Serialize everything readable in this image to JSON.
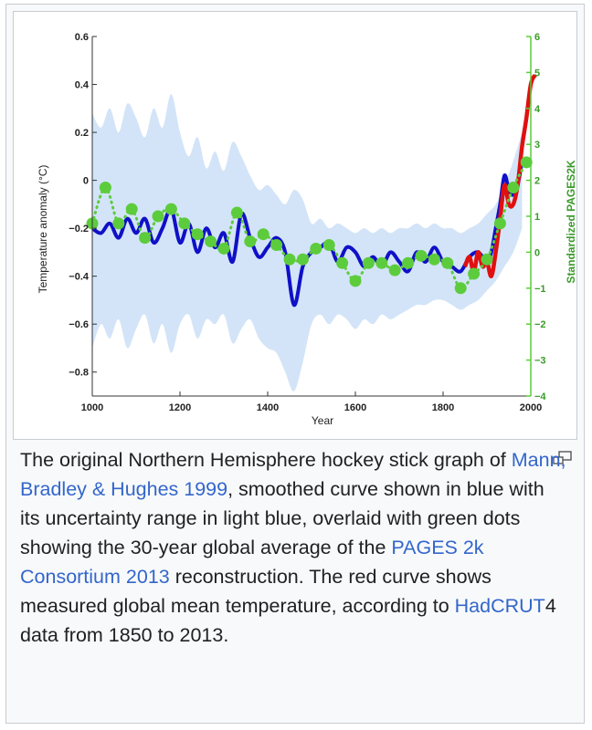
{
  "caption": {
    "t1": "The original Northern Hemisphere hockey stick graph of ",
    "link1": "Mann, Bradley & Hughes 1999",
    "t2": ", smoothed curve shown in blue with its uncertainty range in light blue, overlaid with green dots showing the 30-year global average of the ",
    "link2": "PAGES 2k Consortium 2013",
    "t3": " reconstruction. The red curve shows measured global mean temperature, according to ",
    "link3": "HadCRUT",
    "t4": "4 data from 1850 to 2013."
  },
  "icons": {
    "magnify": "magnify-icon"
  },
  "colors": {
    "mann_line": "#1010c8",
    "uncertainty": "#d3e4f8",
    "pages2k": "#5ccc3c",
    "hadcrut": "#e01010",
    "link": "#3366cc"
  },
  "chart_data": {
    "type": "line",
    "title": "",
    "xlabel": "Year",
    "ylabel": "Temperature anomaly (°C)",
    "y2label": "Standardized PAGES2K",
    "xlim": [
      1000,
      2000
    ],
    "ylim": [
      -0.9,
      0.6
    ],
    "y2lim": [
      -4,
      6
    ],
    "xticks": [
      1000,
      1200,
      1400,
      1600,
      1800,
      2000
    ],
    "yticks": [
      0.6,
      0.4,
      0.2,
      0,
      -0.2,
      -0.4,
      -0.6,
      -0.8
    ],
    "yticklabels": [
      "0.6",
      "0.4",
      "0.2",
      "0",
      "−0.2",
      "−0.4",
      "−0.6",
      "−0.8"
    ],
    "y2ticks": [
      6,
      5,
      4,
      3,
      2,
      1,
      0,
      -1,
      -2,
      -3,
      -4
    ],
    "y2ticklabels": [
      "6",
      "5",
      "4",
      "3",
      "2",
      "1",
      "0",
      "−1",
      "−2",
      "−3",
      "−4"
    ],
    "grid": false,
    "series": [
      {
        "kind": "band",
        "axis": "left",
        "x": [
          1000,
          1020,
          1040,
          1060,
          1080,
          1100,
          1120,
          1140,
          1160,
          1180,
          1200,
          1220,
          1240,
          1260,
          1280,
          1300,
          1320,
          1340,
          1360,
          1380,
          1400,
          1420,
          1440,
          1460,
          1480,
          1500,
          1520,
          1540,
          1560,
          1580,
          1600,
          1620,
          1640,
          1660,
          1680,
          1700,
          1720,
          1740,
          1760,
          1780,
          1800,
          1820,
          1840,
          1860,
          1880,
          1900,
          1920,
          1940,
          1960,
          1980
        ],
        "upper": [
          0.28,
          0.22,
          0.3,
          0.2,
          0.32,
          0.26,
          0.18,
          0.3,
          0.22,
          0.36,
          0.2,
          0.1,
          0.18,
          0.05,
          0.12,
          0.04,
          0.16,
          0.1,
          0.02,
          -0.04,
          -0.02,
          -0.06,
          -0.1,
          -0.04,
          -0.08,
          -0.18,
          -0.16,
          -0.2,
          -0.18,
          -0.2,
          -0.22,
          -0.2,
          -0.22,
          -0.2,
          -0.22,
          -0.2,
          -0.2,
          -0.18,
          -0.2,
          -0.18,
          -0.2,
          -0.2,
          -0.22,
          -0.2,
          -0.18,
          -0.14,
          -0.1,
          -0.02,
          0.08,
          0.2
        ],
        "lower": [
          -0.7,
          -0.6,
          -0.66,
          -0.58,
          -0.7,
          -0.62,
          -0.56,
          -0.68,
          -0.6,
          -0.72,
          -0.6,
          -0.56,
          -0.66,
          -0.58,
          -0.6,
          -0.56,
          -0.68,
          -0.62,
          -0.58,
          -0.66,
          -0.7,
          -0.72,
          -0.8,
          -0.88,
          -0.76,
          -0.6,
          -0.56,
          -0.6,
          -0.56,
          -0.58,
          -0.62,
          -0.58,
          -0.6,
          -0.56,
          -0.58,
          -0.56,
          -0.54,
          -0.52,
          -0.52,
          -0.5,
          -0.5,
          -0.52,
          -0.54,
          -0.52,
          -0.5,
          -0.46,
          -0.42,
          -0.36,
          -0.3,
          -0.2
        ]
      },
      {
        "kind": "line",
        "axis": "left",
        "x": [
          1000,
          1020,
          1040,
          1060,
          1080,
          1100,
          1120,
          1140,
          1160,
          1180,
          1200,
          1220,
          1240,
          1260,
          1280,
          1300,
          1320,
          1340,
          1360,
          1380,
          1400,
          1420,
          1440,
          1460,
          1480,
          1500,
          1520,
          1540,
          1560,
          1580,
          1600,
          1620,
          1640,
          1660,
          1680,
          1700,
          1720,
          1740,
          1760,
          1780,
          1800,
          1820,
          1840,
          1860,
          1880,
          1900,
          1910,
          1920,
          1930,
          1940,
          1950,
          1960,
          1970,
          1980
        ],
        "y": [
          -0.2,
          -0.22,
          -0.18,
          -0.24,
          -0.16,
          -0.22,
          -0.16,
          -0.26,
          -0.2,
          -0.12,
          -0.26,
          -0.18,
          -0.3,
          -0.2,
          -0.28,
          -0.22,
          -0.34,
          -0.14,
          -0.24,
          -0.32,
          -0.28,
          -0.24,
          -0.3,
          -0.52,
          -0.36,
          -0.3,
          -0.28,
          -0.26,
          -0.34,
          -0.28,
          -0.3,
          -0.36,
          -0.32,
          -0.36,
          -0.3,
          -0.34,
          -0.38,
          -0.3,
          -0.34,
          -0.28,
          -0.34,
          -0.36,
          -0.38,
          -0.32,
          -0.3,
          -0.34,
          -0.3,
          -0.2,
          -0.1,
          0.02,
          -0.04,
          -0.06,
          -0.02,
          0.08
        ]
      },
      {
        "kind": "dots",
        "axis": "right",
        "x": [
          1000,
          1030,
          1060,
          1090,
          1120,
          1150,
          1180,
          1210,
          1240,
          1270,
          1300,
          1330,
          1360,
          1390,
          1420,
          1450,
          1480,
          1510,
          1540,
          1570,
          1600,
          1630,
          1660,
          1690,
          1720,
          1750,
          1780,
          1810,
          1840,
          1870,
          1900,
          1930,
          1960,
          1990
        ],
        "y": [
          0.8,
          1.8,
          0.8,
          1.2,
          0.4,
          1.0,
          1.2,
          0.8,
          0.5,
          0.3,
          0.1,
          1.1,
          0.3,
          0.5,
          0.2,
          -0.2,
          -0.2,
          0.1,
          0.2,
          -0.3,
          -0.8,
          -0.3,
          -0.3,
          -0.5,
          -0.3,
          -0.1,
          -0.2,
          -0.3,
          -1.0,
          -0.6,
          -0.2,
          0.8,
          1.8,
          2.5
        ]
      },
      {
        "kind": "line",
        "axis": "left",
        "x": [
          1850,
          1860,
          1870,
          1880,
          1890,
          1900,
          1910,
          1920,
          1930,
          1940,
          1950,
          1960,
          1970,
          1980,
          1990,
          2000,
          2010
        ],
        "y": [
          -0.36,
          -0.32,
          -0.38,
          -0.3,
          -0.36,
          -0.34,
          -0.4,
          -0.3,
          -0.16,
          -0.02,
          -0.1,
          -0.1,
          -0.02,
          0.14,
          0.26,
          0.4,
          0.44
        ]
      }
    ]
  }
}
